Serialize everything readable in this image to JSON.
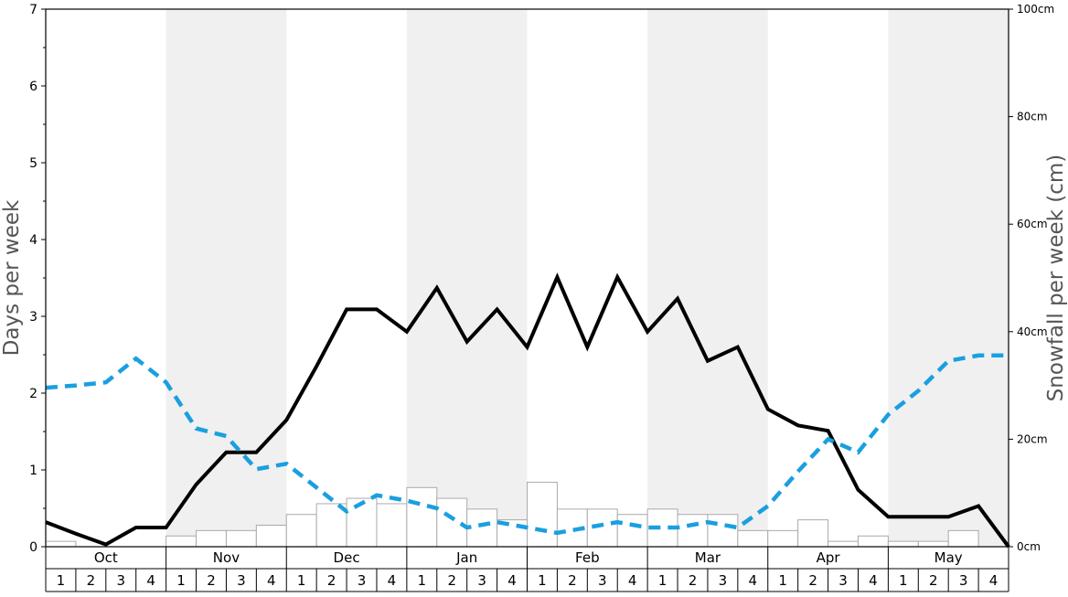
{
  "colors": {
    "days_line": "#000000",
    "second_line": "#1a9fe0",
    "bar_stroke": "#aaaaaa",
    "bar_fill": "#ffffff",
    "band_shade": "#f0f0f0"
  },
  "chart_data": {
    "type": "line",
    "title": "",
    "ylabel": "Days per week",
    "y2label": "Snowfall per week (cm)",
    "ylim": [
      0,
      7
    ],
    "y_ticks": [
      "0",
      "1",
      "2",
      "3",
      "4",
      "5",
      "6",
      "7"
    ],
    "y2lim": [
      0,
      100
    ],
    "y2_ticks": [
      "0cm",
      "20cm",
      "40cm",
      "60cm",
      "80cm",
      "100cm"
    ],
    "months": [
      "Oct",
      "Nov",
      "Dec",
      "Jan",
      "Feb",
      "Mar",
      "Apr",
      "May"
    ],
    "shaded_months": [
      "Nov",
      "Jan",
      "Mar",
      "May"
    ],
    "weeks": [
      "1",
      "2",
      "3",
      "4"
    ],
    "series": [
      {
        "style": "solid",
        "values": [
          0.32,
          0.17,
          0.03,
          0.25,
          0.25,
          0.81,
          1.23,
          1.23,
          1.65,
          2.35,
          3.09,
          3.09,
          2.8,
          3.37,
          2.67,
          3.09,
          2.6,
          3.51,
          2.6,
          3.51,
          2.8,
          3.23,
          2.42,
          2.6,
          1.79,
          1.58,
          1.51,
          0.74,
          0.39,
          0.39,
          0.39,
          0.53,
          0.0
        ]
      },
      {
        "style": "dashed",
        "values": [
          2.07,
          2.1,
          2.14,
          2.45,
          2.14,
          1.54,
          1.44,
          1.01,
          1.08,
          0.77,
          0.46,
          0.67,
          0.6,
          0.5,
          0.25,
          0.32,
          0.25,
          0.18,
          0.25,
          0.32,
          0.25,
          0.25,
          0.32,
          0.25,
          0.53,
          0.98,
          1.4,
          1.23,
          1.72,
          2.03,
          2.42,
          2.49,
          2.49
        ]
      }
    ],
    "snowfall_bars_cm": [
      1,
      0,
      0,
      0,
      2,
      3,
      3,
      4,
      6,
      8,
      9,
      8,
      11,
      9,
      7,
      5,
      12,
      7,
      7,
      6,
      7,
      6,
      6,
      3,
      3,
      5,
      1,
      2,
      1,
      1,
      3,
      0
    ]
  }
}
